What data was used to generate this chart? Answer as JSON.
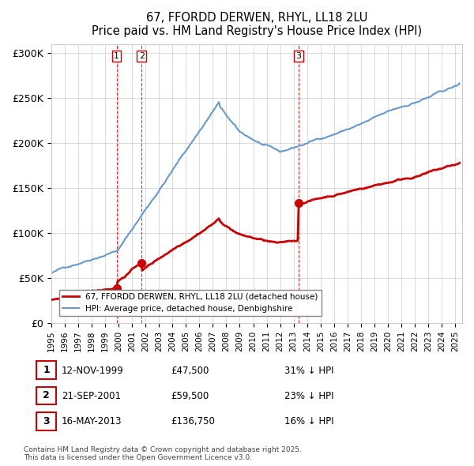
{
  "title": "67, FFORDD DERWEN, RHYL, LL18 2LU",
  "subtitle": "Price paid vs. HM Land Registry's House Price Index (HPI)",
  "ylabel_ticks": [
    "£0",
    "£50K",
    "£100K",
    "£150K",
    "£200K",
    "£250K",
    "£300K"
  ],
  "ytick_values": [
    0,
    50000,
    100000,
    150000,
    200000,
    250000,
    300000
  ],
  "ylim": [
    0,
    310000
  ],
  "xlim_start": 1995.0,
  "xlim_end": 2025.5,
  "transactions": [
    {
      "label": "1",
      "date": "12-NOV-1999",
      "price": 47500,
      "year": 1999.87,
      "pct": "31%",
      "dir": "↓"
    },
    {
      "label": "2",
      "date": "21-SEP-2001",
      "price": 59500,
      "year": 2001.72,
      "pct": "23%",
      "dir": "↓"
    },
    {
      "label": "3",
      "date": "16-MAY-2013",
      "price": 136750,
      "year": 2013.37,
      "pct": "16%",
      "dir": "↓"
    }
  ],
  "legend_entries": [
    {
      "label": "67, FFORDD DERWEN, RHYL, LL18 2LU (detached house)",
      "color": "#cc0000",
      "lw": 2
    },
    {
      "label": "HPI: Average price, detached house, Denbighshire",
      "color": "#6699cc",
      "lw": 1.5
    }
  ],
  "footer": "Contains HM Land Registry data © Crown copyright and database right 2025.\nThis data is licensed under the Open Government Licence v3.0.",
  "bg_color": "#ffffff",
  "grid_color": "#cccccc",
  "vline_color": "#cc0000"
}
